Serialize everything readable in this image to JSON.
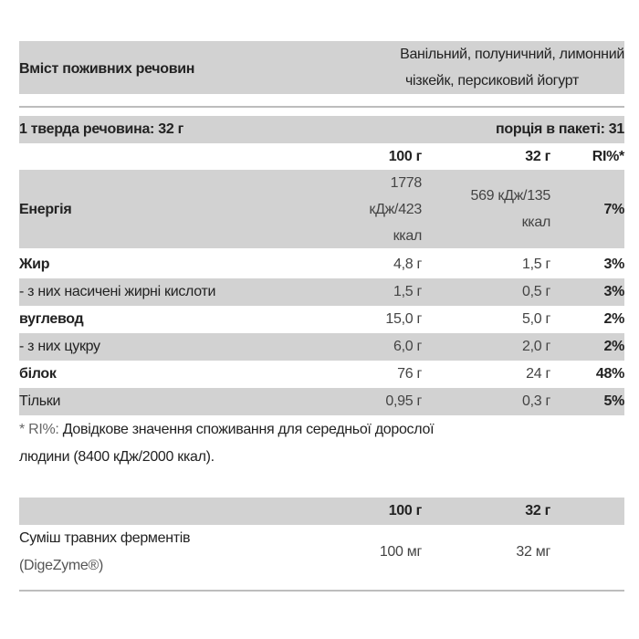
{
  "header": {
    "title": "Вміст поживних речовин",
    "flavors_line1": "Ванільний, полуничний, лимонний",
    "flavors_line2": "чізкейк, персиковий йогурт"
  },
  "serving": {
    "left": "1 тверда речовина: 32 г",
    "right": "порція в пакеті: 31"
  },
  "columns": {
    "c1": "100 г",
    "c2": "32 г",
    "c3": "RI%*"
  },
  "energy": {
    "label": "Енергія",
    "v1_l1": "1778",
    "v1_l2": "кДж/423",
    "v1_l3": "ккал",
    "v2_l1": "569 кДж/135",
    "v2_l2": "ккал",
    "ri": "7%"
  },
  "rows": [
    {
      "label": "Жир",
      "v1": "4,8 г",
      "v2": "1,5 г",
      "ri": "3%"
    },
    {
      "label": "- з них насичені жирні кислоти",
      "v1": "1,5 г",
      "v2": "0,5 г",
      "ri": "3%"
    },
    {
      "label": "вуглевод",
      "v1": "15,0 г",
      "v2": "5,0 г",
      "ri": "2%"
    },
    {
      "label": "- з них цукру",
      "v1": "6,0 г",
      "v2": "2,0 г",
      "ri": "2%"
    },
    {
      "label": "білок",
      "v1": "76 г",
      "v2": "24 г",
      "ri": "48%"
    },
    {
      "label": "Тільки",
      "v1": "0,95 г",
      "v2": "0,3 г",
      "ri": "5%"
    }
  ],
  "footnote": {
    "prefix": "* RI%:",
    "line1": " Довідкове значення споживання для середньої дорослої",
    "line2": "людини (8400 кДж/2000 ккал)."
  },
  "enzymes": {
    "columns": {
      "c1": "100 г",
      "c2": "32 г"
    },
    "label_l1": "Суміш травних ферментів",
    "label_l2": "(DigeZyme®)",
    "v1": "100 мг",
    "v2": "32 мг"
  }
}
